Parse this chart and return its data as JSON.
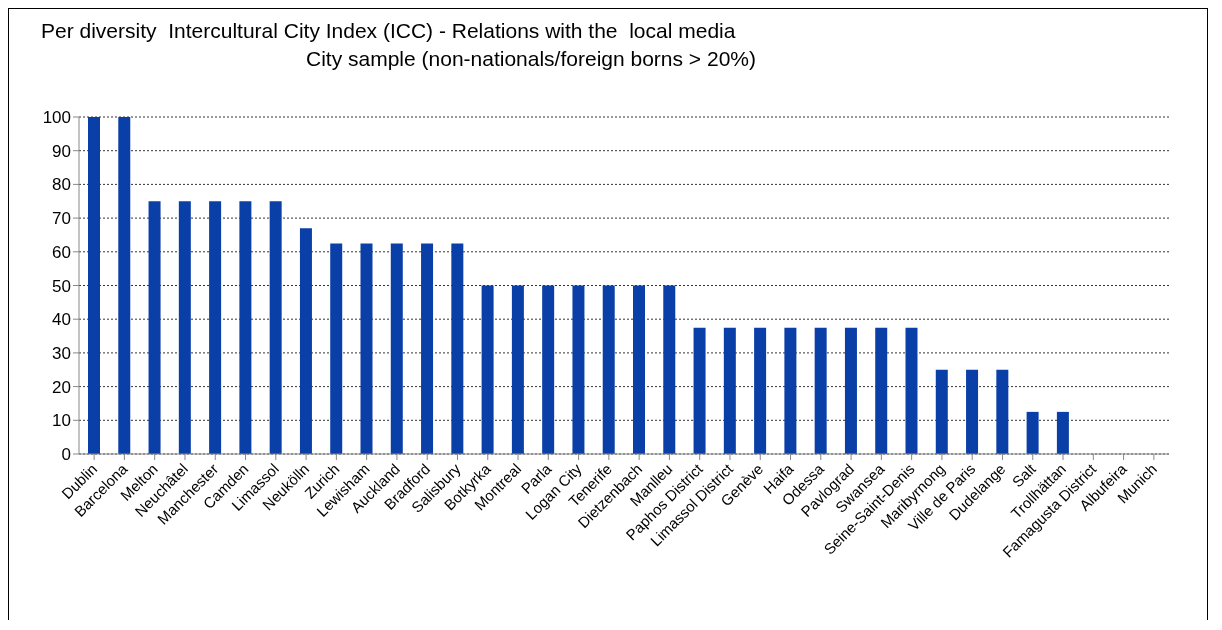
{
  "chart_data": {
    "type": "bar",
    "title": "Per diversity  Intercultural City Index (ICC) - Relations with the  local media",
    "subtitle": "City sample (non-nationals/foreign borns > 20%)",
    "categories": [
      "Dublin",
      "Barcelona",
      "Melton",
      "Neuchâtel",
      "Manchester",
      "Camden",
      "Limassol",
      "Neukölln",
      "Zurich",
      "Lewisham",
      "Auckland",
      "Bradford",
      "Salisbury",
      "Botkyrka",
      "Montreal",
      "Parla",
      "Logan City",
      "Tenerife",
      "Dietzenbach",
      "Manlleu",
      "Paphos District",
      "Limassol District",
      "Genève",
      "Haifa",
      "Odessa",
      "Pavlograd",
      "Swansea",
      "Seine-Saint-Denis",
      "Maribyrnong",
      "Ville de Paris",
      "Dudelange",
      "Salt",
      "Trollhättan",
      "Famagusta District",
      "Albufeira",
      "Munich"
    ],
    "values": [
      100,
      100,
      75,
      75,
      75,
      75,
      75,
      67,
      62.5,
      62.5,
      62.5,
      62.5,
      62.5,
      50,
      50,
      50,
      50,
      50,
      50,
      50,
      37.5,
      37.5,
      37.5,
      37.5,
      37.5,
      37.5,
      37.5,
      37.5,
      25,
      25,
      25,
      12.5,
      12.5,
      0,
      0,
      0
    ],
    "color": "#0a3fa8",
    "ylim": [
      0,
      100
    ],
    "yticks": [
      0,
      10,
      20,
      30,
      40,
      50,
      60,
      70,
      80,
      90,
      100
    ],
    "grid": "y",
    "legend": false
  }
}
